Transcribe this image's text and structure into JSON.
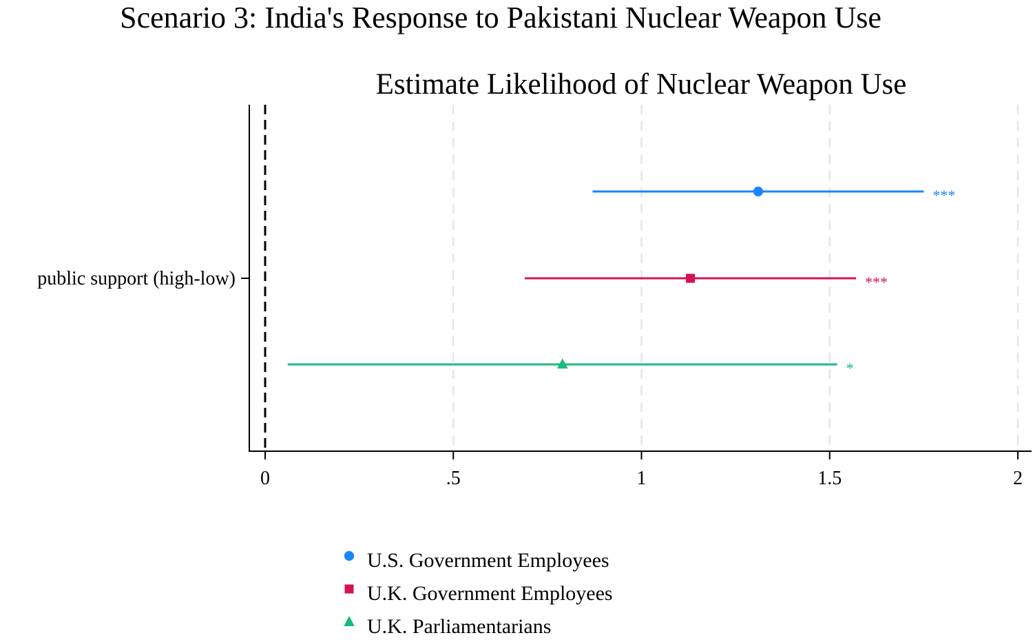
{
  "chart_data": {
    "type": "scatter",
    "title": "Scenario 3: India's Response to Pakistani Nuclear Weapon Use",
    "subtitle": "Estimate Likelihood of Nuclear Weapon Use",
    "y_category": "public support (high-low)",
    "xlim": [
      0,
      2
    ],
    "x_ticks": [
      {
        "value": 0,
        "label": "0"
      },
      {
        "value": 0.5,
        "label": ".5"
      },
      {
        "value": 1,
        "label": "1"
      },
      {
        "value": 1.5,
        "label": "1.5"
      },
      {
        "value": 2,
        "label": "2"
      }
    ],
    "reference_line": 0,
    "grid": "vertical dashed",
    "legend_position": "bottom",
    "series": [
      {
        "name": "U.S. Government Employees",
        "estimate": 1.31,
        "ci_low": 0.87,
        "ci_high": 1.75,
        "significance": "***",
        "color": "#1a85ff",
        "marker": "circle"
      },
      {
        "name": "U.K. Government Employees",
        "estimate": 1.13,
        "ci_low": 0.69,
        "ci_high": 1.57,
        "significance": "***",
        "color": "#d41159",
        "marker": "square"
      },
      {
        "name": "U.K. Parliamentarians",
        "estimate": 0.79,
        "ci_low": 0.06,
        "ci_high": 1.52,
        "significance": "*",
        "color": "#1abc7c",
        "marker": "triangle"
      }
    ]
  }
}
